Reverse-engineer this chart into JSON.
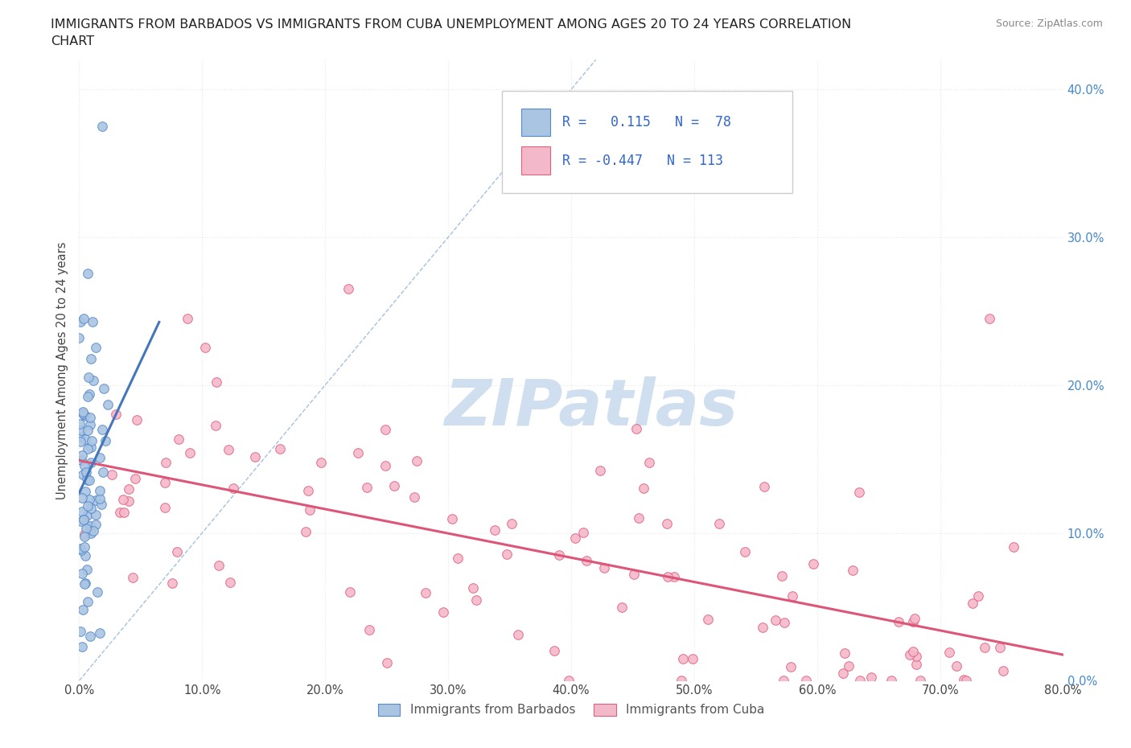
{
  "title_line1": "IMMIGRANTS FROM BARBADOS VS IMMIGRANTS FROM CUBA UNEMPLOYMENT AMONG AGES 20 TO 24 YEARS CORRELATION",
  "title_line2": "CHART",
  "source": "Source: ZipAtlas.com",
  "ylabel": "Unemployment Among Ages 20 to 24 years",
  "xlim": [
    0.0,
    0.8
  ],
  "ylim": [
    0.0,
    0.42
  ],
  "x_ticks": [
    0.0,
    0.1,
    0.2,
    0.3,
    0.4,
    0.5,
    0.6,
    0.7,
    0.8
  ],
  "x_tick_labels": [
    "0.0%",
    "10.0%",
    "20.0%",
    "30.0%",
    "40.0%",
    "50.0%",
    "60.0%",
    "70.0%",
    "80.0%"
  ],
  "y_ticks": [
    0.0,
    0.1,
    0.2,
    0.3,
    0.4
  ],
  "y_tick_labels_right": [
    "0.0%",
    "10.0%",
    "20.0%",
    "30.0%",
    "40.0%"
  ],
  "barbados_color": "#aac5e2",
  "barbados_edge": "#5588cc",
  "cuba_color": "#f4b8cb",
  "cuba_edge": "#e06080",
  "R_barbados": 0.115,
  "N_barbados": 78,
  "R_cuba": -0.447,
  "N_cuba": 113,
  "trend_barbados_color": "#4477bb",
  "trend_cuba_color": "#dd5577",
  "watermark_text": "ZIPatlas",
  "watermark_color": "#d0dff0",
  "legend_label_barbados": "Immigrants from Barbados",
  "legend_label_cuba": "Immigrants from Cuba",
  "background_color": "#ffffff",
  "grid_color": "#e8e8e8",
  "scatter_size": 70,
  "title_fontsize": 11.5,
  "tick_fontsize": 10.5
}
